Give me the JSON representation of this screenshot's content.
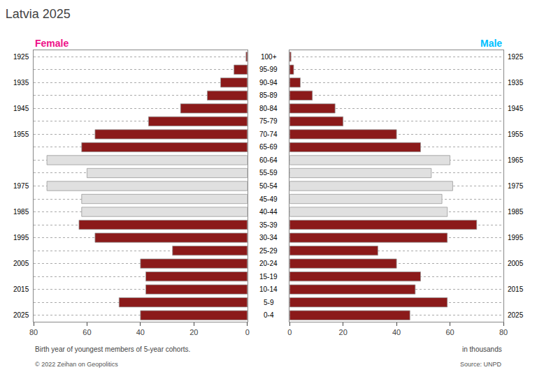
{
  "chart_data": {
    "type": "bar",
    "orientation": "horizontal",
    "title": "Latvia 2025",
    "categories": [
      "0-4",
      "5-9",
      "10-14",
      "15-19",
      "20-24",
      "25-29",
      "30-34",
      "35-39",
      "40-44",
      "45-49",
      "50-54",
      "55-59",
      "60-64",
      "65-69",
      "70-74",
      "75-79",
      "80-84",
      "85-89",
      "90-94",
      "95-99",
      "100+"
    ],
    "series": [
      {
        "name": "Female",
        "color": "#ee1289",
        "values": [
          40.0,
          48.0,
          38.0,
          38.0,
          40.0,
          28.0,
          57.0,
          63.0,
          62.0,
          62.0,
          75.0,
          60.0,
          75.0,
          62.0,
          57.0,
          37.0,
          25.0,
          15.0,
          10.0,
          5.0,
          0.5
        ],
        "colors": [
          "#8b1a1a",
          "#8b1a1a",
          "#8b1a1a",
          "#8b1a1a",
          "#8b1a1a",
          "#8b1a1a",
          "#8b1a1a",
          "#8b1a1a",
          "#e0e0e0",
          "#e0e0e0",
          "#e0e0e0",
          "#e0e0e0",
          "#e0e0e0",
          "#8b1a1a",
          "#8b1a1a",
          "#8b1a1a",
          "#8b1a1a",
          "#8b1a1a",
          "#8b1a1a",
          "#8b1a1a",
          "#8b1a1a"
        ],
        "outer_labels": [
          "2025",
          null,
          "2015",
          null,
          "2005",
          null,
          "1995",
          null,
          "1985",
          null,
          "1975",
          null,
          null,
          null,
          "1955",
          null,
          "1945",
          null,
          "1935",
          null,
          "1925"
        ]
      },
      {
        "name": "Male",
        "color": "#00bfff",
        "values": [
          45.0,
          59.0,
          47.0,
          49.0,
          40.0,
          33.0,
          59.0,
          70.0,
          59.0,
          57.0,
          61.0,
          53.0,
          60.0,
          49.0,
          40.0,
          20.0,
          17.0,
          8.5,
          4.0,
          1.5,
          0.5
        ],
        "colors": [
          "#8b1a1a",
          "#8b1a1a",
          "#8b1a1a",
          "#8b1a1a",
          "#8b1a1a",
          "#8b1a1a",
          "#8b1a1a",
          "#8b1a1a",
          "#e0e0e0",
          "#e0e0e0",
          "#e0e0e0",
          "#e0e0e0",
          "#e0e0e0",
          "#8b1a1a",
          "#8b1a1a",
          "#8b1a1a",
          "#8b1a1a",
          "#8b1a1a",
          "#8b1a1a",
          "#8b1a1a",
          "#8b1a1a"
        ],
        "outer_labels": [
          "2025",
          null,
          "2015",
          null,
          "2005",
          null,
          "1995",
          null,
          "1985",
          null,
          "1975",
          null,
          "1965",
          null,
          "1955",
          null,
          "1945",
          null,
          "1935",
          null,
          "1925"
        ]
      }
    ],
    "xlim": [
      0,
      80
    ],
    "xticks": [
      0,
      20,
      40,
      60,
      80
    ],
    "grid": true,
    "footnotes": [
      "Birth year of youngest members of 5-year cohorts.",
      "in thousands",
      "© 2022 Zeihan on Geopolitics",
      "Source: UNPD"
    ]
  }
}
